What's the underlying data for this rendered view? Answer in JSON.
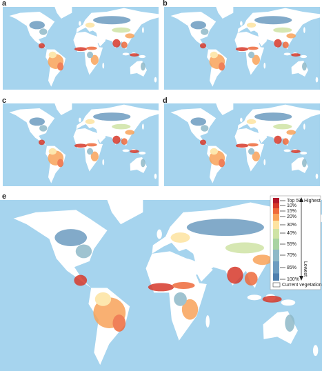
{
  "panels": [
    {
      "label": "a"
    },
    {
      "label": "b"
    },
    {
      "label": "c"
    },
    {
      "label": "d"
    },
    {
      "label": "e"
    }
  ],
  "legend": {
    "levels": [
      "Top 5%",
      "10%",
      "15%",
      "20%",
      "30%",
      "40%",
      "55%",
      "70%",
      "85%",
      "100%"
    ],
    "highest": "Highest",
    "lowest": "Lowest",
    "current_vegetation": "Current vegetation"
  }
}
